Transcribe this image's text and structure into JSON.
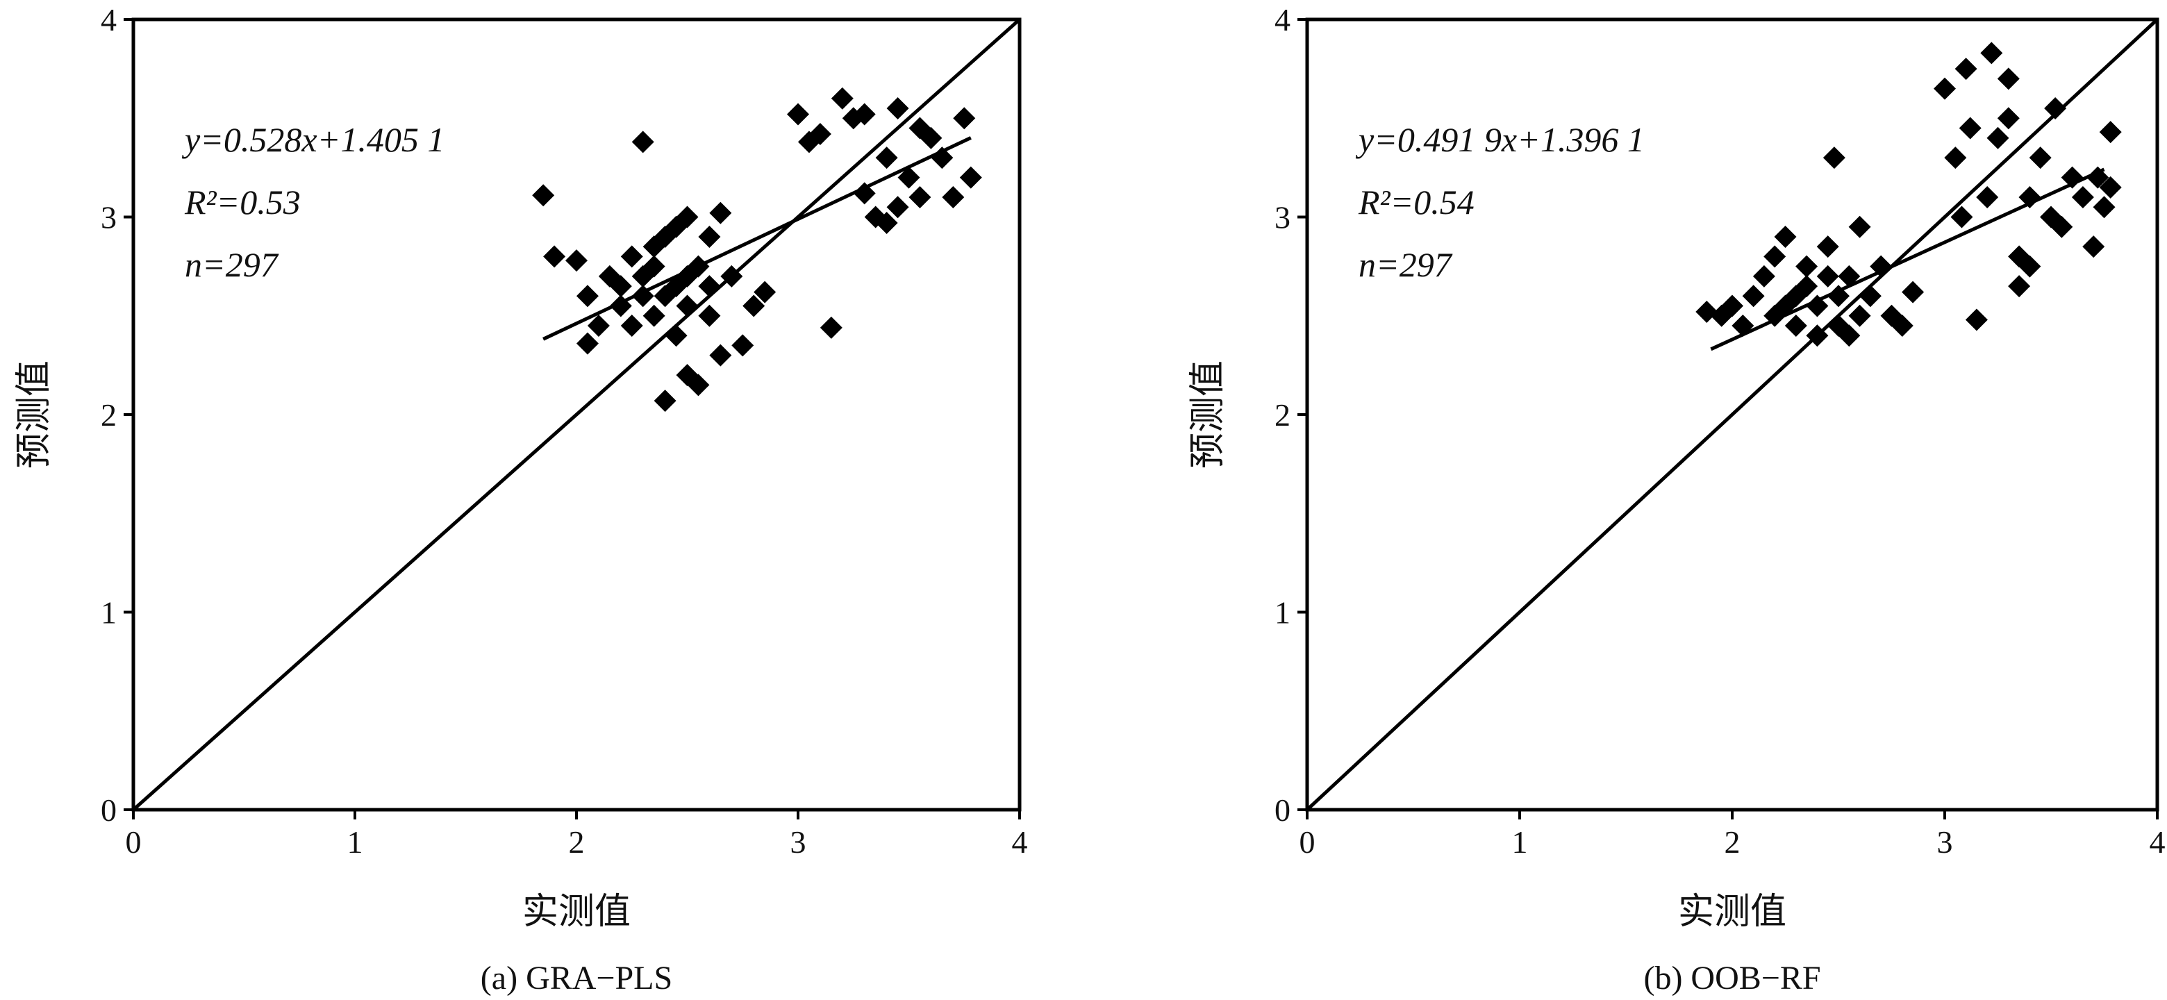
{
  "chart_data": [
    {
      "type": "scatter",
      "caption": "(a) GRA−PLS",
      "x_label": "实测值",
      "y_label": "预测值",
      "annotations": [
        "y=0.528x+1.405 1",
        "R²=0.53",
        "n=297"
      ],
      "color": "#000000",
      "xlim": [
        0,
        4
      ],
      "ylim": [
        0,
        4
      ],
      "xticks": [
        0,
        1,
        2,
        3,
        4
      ],
      "yticks": [
        0,
        1,
        2,
        3,
        4
      ],
      "x": [
        1.85,
        1.9,
        2.0,
        2.05,
        2.1,
        2.05,
        2.15,
        2.2,
        2.25,
        2.3,
        2.3,
        2.35,
        2.35,
        2.4,
        2.4,
        2.45,
        2.45,
        2.5,
        2.5,
        2.5,
        2.55,
        2.55,
        2.6,
        2.6,
        2.65,
        2.65,
        2.7,
        2.75,
        2.8,
        2.85,
        2.2,
        2.3,
        2.4,
        2.5,
        2.35,
        2.45,
        2.6,
        2.25,
        3.0,
        3.05,
        3.1,
        3.15,
        3.2,
        3.25,
        3.3,
        3.35,
        3.4,
        3.4,
        3.45,
        3.5,
        3.55,
        3.6,
        3.65,
        3.7,
        3.75,
        3.78,
        3.55,
        3.3,
        3.45
      ],
      "values": [
        3.11,
        2.8,
        2.78,
        2.6,
        2.45,
        2.36,
        2.7,
        2.55,
        2.8,
        3.38,
        2.6,
        2.5,
        2.75,
        2.9,
        2.07,
        2.65,
        2.4,
        3.0,
        2.55,
        2.2,
        2.75,
        2.15,
        2.9,
        2.5,
        3.02,
        2.3,
        2.7,
        2.35,
        2.55,
        2.62,
        2.65,
        2.7,
        2.6,
        2.7,
        2.85,
        2.95,
        2.65,
        2.45,
        3.52,
        3.38,
        3.42,
        2.44,
        3.6,
        3.5,
        3.12,
        3.0,
        2.97,
        3.3,
        3.55,
        3.2,
        3.1,
        3.4,
        3.3,
        3.1,
        3.5,
        3.2,
        3.45,
        3.52,
        3.05
      ],
      "fit_line": {
        "x": [
          1.85,
          3.78
        ],
        "y": [
          2.382,
          3.401
        ]
      }
    },
    {
      "type": "scatter",
      "caption": "(b) OOB−RF",
      "x_label": "实测值",
      "y_label": "预测值",
      "annotations": [
        "y=0.491 9x+1.396 1",
        "R²=0.54",
        "n=297"
      ],
      "color": "#000000",
      "xlim": [
        0,
        4
      ],
      "ylim": [
        0,
        4
      ],
      "xticks": [
        0,
        1,
        2,
        3,
        4
      ],
      "yticks": [
        0,
        1,
        2,
        3,
        4
      ],
      "x": [
        1.88,
        1.95,
        2.0,
        2.05,
        2.1,
        2.15,
        2.2,
        2.2,
        2.25,
        2.3,
        2.3,
        2.35,
        2.4,
        2.4,
        2.45,
        2.48,
        2.5,
        2.5,
        2.55,
        2.55,
        2.6,
        2.6,
        2.65,
        2.7,
        2.75,
        2.8,
        2.85,
        2.35,
        2.45,
        2.25,
        3.0,
        3.05,
        3.08,
        3.1,
        3.12,
        3.15,
        3.2,
        3.22,
        3.25,
        3.3,
        3.3,
        3.35,
        3.35,
        3.4,
        3.45,
        3.5,
        3.52,
        3.55,
        3.6,
        3.65,
        3.7,
        3.72,
        3.75,
        3.78,
        3.78,
        3.4
      ],
      "values": [
        2.52,
        2.5,
        2.55,
        2.45,
        2.6,
        2.7,
        2.8,
        2.5,
        2.9,
        2.6,
        2.45,
        2.75,
        2.55,
        2.4,
        2.85,
        3.3,
        2.6,
        2.45,
        2.7,
        2.4,
        2.95,
        2.5,
        2.6,
        2.75,
        2.5,
        2.45,
        2.62,
        2.65,
        2.7,
        2.55,
        3.65,
        3.3,
        3.0,
        3.75,
        3.45,
        2.48,
        3.1,
        3.83,
        3.4,
        3.7,
        3.5,
        2.8,
        2.65,
        3.1,
        3.3,
        3.0,
        3.55,
        2.95,
        3.2,
        3.1,
        2.85,
        3.2,
        3.05,
        3.43,
        3.15,
        2.75
      ],
      "fit_line": {
        "x": [
          1.9,
          3.75
        ],
        "y": [
          2.331,
          3.241
        ]
      }
    }
  ]
}
